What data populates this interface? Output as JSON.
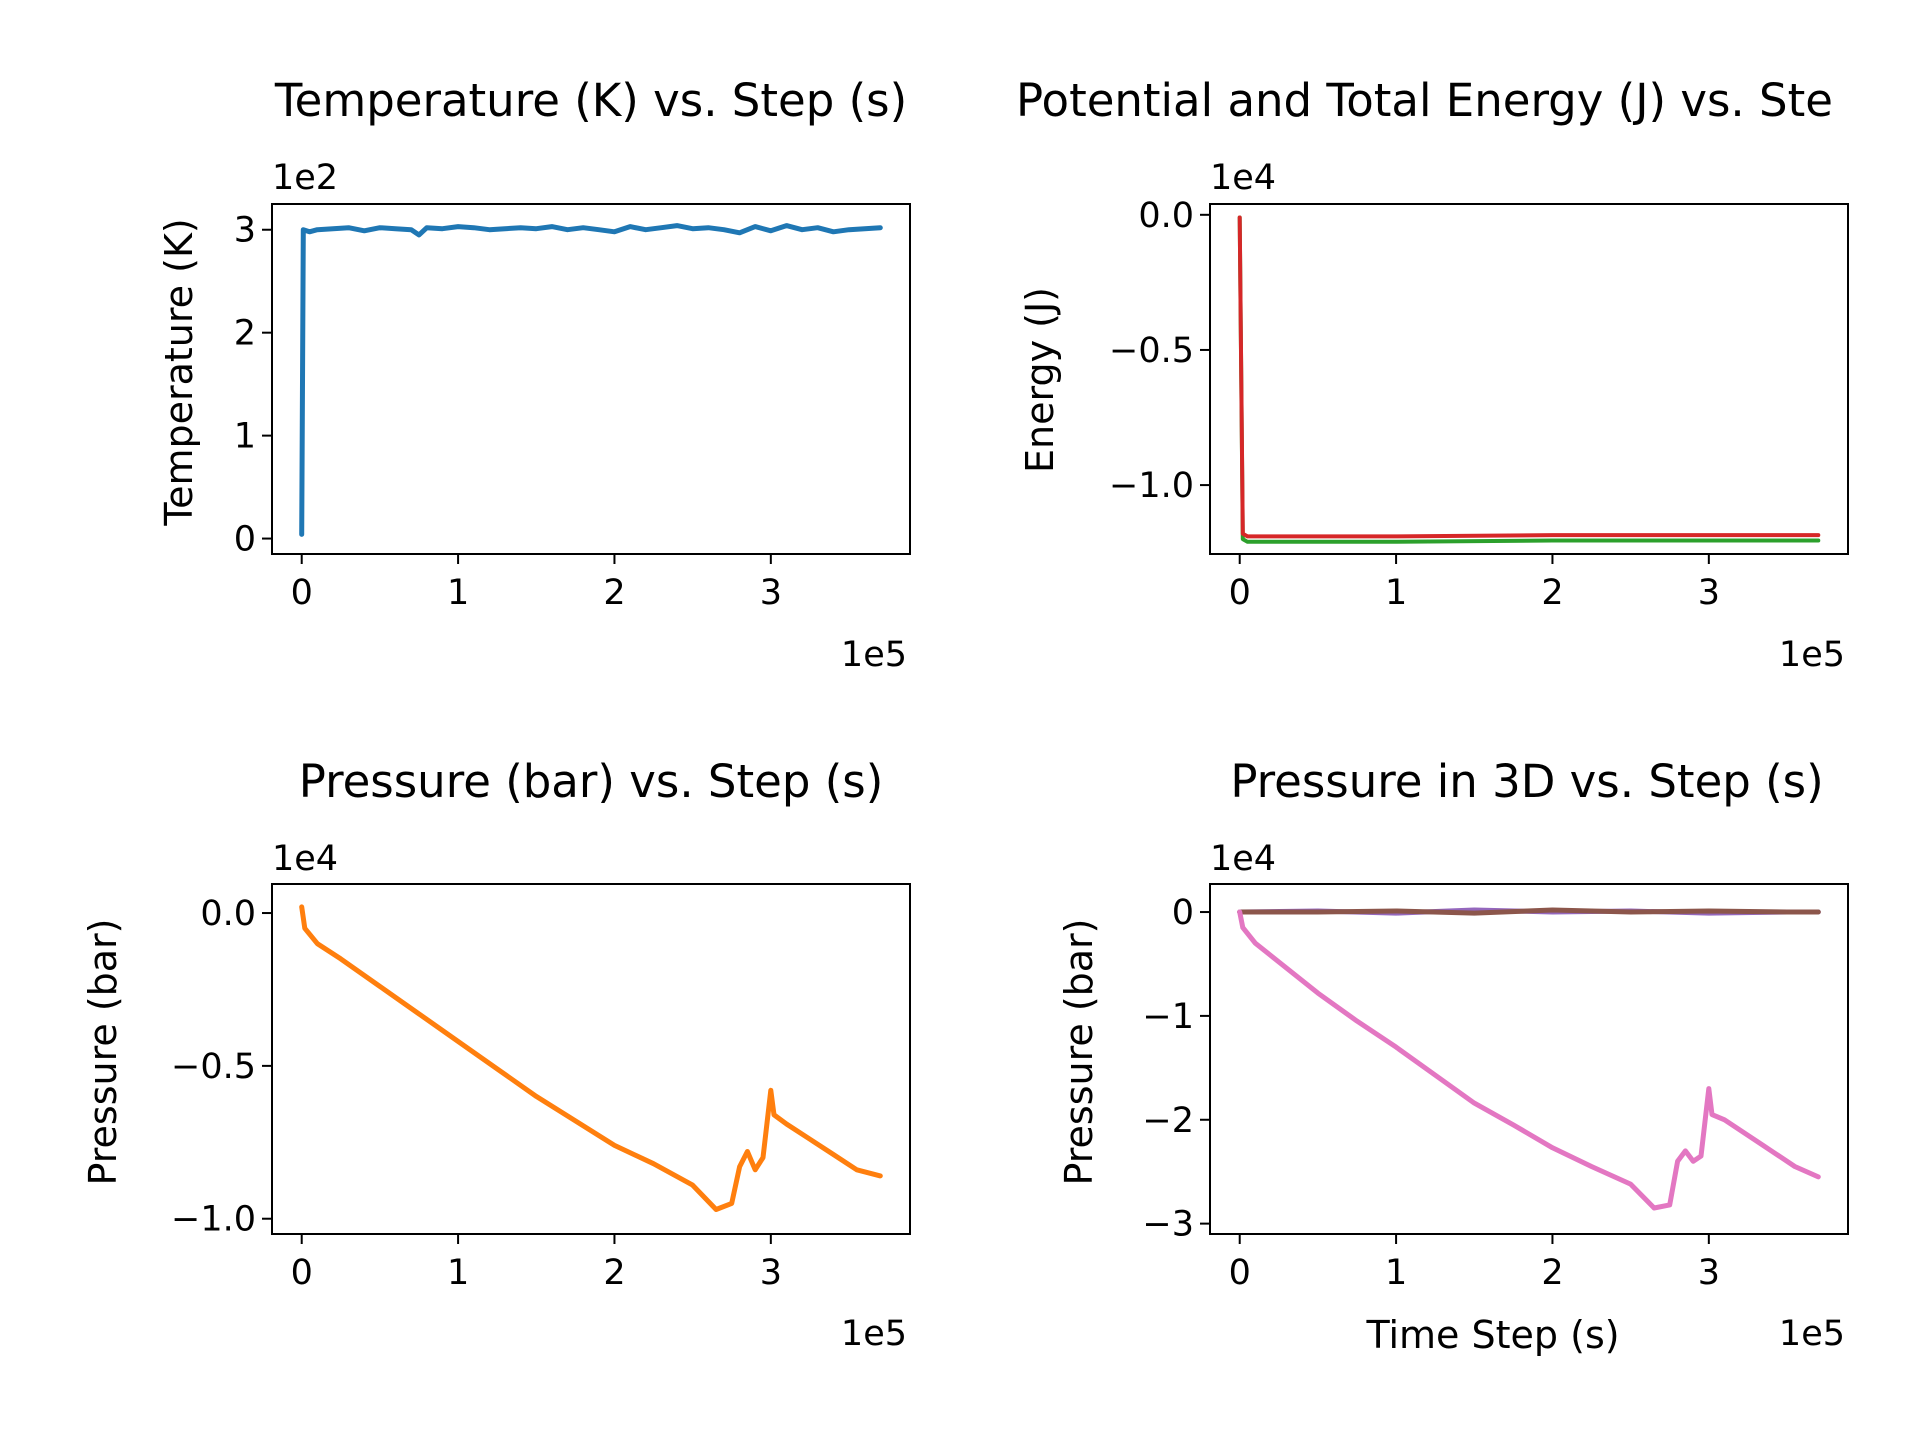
{
  "chart_data": [
    {
      "id": "temperature",
      "type": "line",
      "title": "Temperature (K) vs. Step (s)",
      "xlabel": "",
      "ylabel": "Temperature (K)",
      "x_multiplier_label": "1e5",
      "y_multiplier_label": "1e2",
      "xlim": [
        -0.19,
        3.89
      ],
      "ylim": [
        -0.15,
        3.25
      ],
      "x_ticks": [
        0,
        1,
        2,
        3
      ],
      "x_tick_labels": [
        "0",
        "1",
        "2",
        "3"
      ],
      "y_ticks": [
        0,
        1,
        2,
        3
      ],
      "y_tick_labels": [
        "0",
        "1",
        "2",
        "3"
      ],
      "series": [
        {
          "color": "#1f77b4",
          "x": [
            0.0,
            0.01,
            0.05,
            0.1,
            0.2,
            0.3,
            0.4,
            0.5,
            0.6,
            0.7,
            0.75,
            0.8,
            0.9,
            1.0,
            1.1,
            1.2,
            1.3,
            1.4,
            1.5,
            1.6,
            1.7,
            1.8,
            1.9,
            2.0,
            2.1,
            2.2,
            2.3,
            2.4,
            2.5,
            2.6,
            2.7,
            2.8,
            2.9,
            3.0,
            3.1,
            3.2,
            3.3,
            3.4,
            3.5,
            3.6,
            3.7
          ],
          "y": [
            0.04,
            3.0,
            2.98,
            3.0,
            3.01,
            3.02,
            2.99,
            3.02,
            3.01,
            3.0,
            2.95,
            3.02,
            3.01,
            3.03,
            3.02,
            3.0,
            3.01,
            3.02,
            3.01,
            3.03,
            3.0,
            3.02,
            3.0,
            2.98,
            3.03,
            3.0,
            3.02,
            3.04,
            3.01,
            3.02,
            3.0,
            2.97,
            3.03,
            2.99,
            3.04,
            3.0,
            3.02,
            2.98,
            3.0,
            3.01,
            3.02
          ]
        }
      ]
    },
    {
      "id": "energy",
      "type": "line",
      "title": "Potential and Total Energy (J) vs. Ste",
      "xlabel": "",
      "ylabel": "Energy (J)",
      "x_multiplier_label": "1e5",
      "y_multiplier_label": "1e4",
      "xlim": [
        -0.19,
        3.89
      ],
      "ylim": [
        -1.255,
        0.04
      ],
      "x_ticks": [
        0,
        1,
        2,
        3
      ],
      "x_tick_labels": [
        "0",
        "1",
        "2",
        "3"
      ],
      "y_ticks": [
        0.0,
        -0.5,
        -1.0
      ],
      "y_tick_labels": [
        "0.0",
        "−0.5",
        "−1.0"
      ],
      "series": [
        {
          "color": "#2ca02c",
          "x": [
            0.0,
            0.02,
            0.05,
            1.0,
            2.0,
            3.0,
            3.7
          ],
          "y": [
            -0.01,
            -1.2,
            -1.21,
            -1.21,
            -1.205,
            -1.205,
            -1.205
          ]
        },
        {
          "color": "#d62728",
          "x": [
            0.0,
            0.02,
            0.05,
            1.0,
            2.0,
            3.0,
            3.7
          ],
          "y": [
            -0.01,
            -1.18,
            -1.19,
            -1.19,
            -1.185,
            -1.185,
            -1.185
          ]
        }
      ]
    },
    {
      "id": "pressure",
      "type": "line",
      "title": "Pressure (bar) vs. Step (s)",
      "xlabel": "",
      "ylabel": "Pressure (bar)",
      "x_multiplier_label": "1e5",
      "y_multiplier_label": "1e4",
      "xlim": [
        -0.19,
        3.89
      ],
      "ylim": [
        -1.05,
        0.095
      ],
      "x_ticks": [
        0,
        1,
        2,
        3
      ],
      "x_tick_labels": [
        "0",
        "1",
        "2",
        "3"
      ],
      "y_ticks": [
        0.0,
        -0.5,
        -1.0
      ],
      "y_tick_labels": [
        "0.0",
        "−0.5",
        "−1.0"
      ],
      "series": [
        {
          "color": "#ff7f0e",
          "x": [
            0.0,
            0.02,
            0.1,
            0.25,
            0.5,
            0.75,
            1.0,
            1.25,
            1.5,
            1.75,
            2.0,
            2.25,
            2.5,
            2.65,
            2.75,
            2.8,
            2.85,
            2.9,
            2.95,
            3.0,
            3.02,
            3.1,
            3.25,
            3.4,
            3.55,
            3.7
          ],
          "y": [
            0.02,
            -0.05,
            -0.1,
            -0.15,
            -0.24,
            -0.33,
            -0.42,
            -0.51,
            -0.6,
            -0.68,
            -0.76,
            -0.82,
            -0.89,
            -0.97,
            -0.95,
            -0.83,
            -0.78,
            -0.84,
            -0.8,
            -0.58,
            -0.66,
            -0.69,
            -0.74,
            -0.79,
            -0.84,
            -0.86
          ]
        }
      ]
    },
    {
      "id": "pressure3d",
      "type": "line",
      "title": "Pressure in 3D vs. Step (s)",
      "xlabel": "Time Step (s)",
      "ylabel": "Pressure (bar)",
      "x_multiplier_label": "1e5",
      "y_multiplier_label": "1e4",
      "xlim": [
        -0.19,
        3.89
      ],
      "ylim": [
        -3.1,
        0.27
      ],
      "x_ticks": [
        0,
        1,
        2,
        3
      ],
      "x_tick_labels": [
        "0",
        "1",
        "2",
        "3"
      ],
      "y_ticks": [
        0,
        -1,
        -2,
        -3
      ],
      "y_tick_labels": [
        "0",
        "−1",
        "−2",
        "−3"
      ],
      "series": [
        {
          "color": "#9467bd",
          "x": [
            0.0,
            0.5,
            1.0,
            1.5,
            2.0,
            2.5,
            3.0,
            3.5,
            3.7
          ],
          "y": [
            0.0,
            0.01,
            -0.01,
            0.02,
            0.0,
            0.01,
            -0.01,
            0.0,
            0.0
          ]
        },
        {
          "color": "#8c564b",
          "x": [
            0.0,
            0.5,
            1.0,
            1.5,
            2.0,
            2.5,
            3.0,
            3.5,
            3.7
          ],
          "y": [
            0.0,
            0.0,
            0.01,
            -0.01,
            0.02,
            0.0,
            0.01,
            0.0,
            0.0
          ]
        },
        {
          "color": "#e377c2",
          "x": [
            0.0,
            0.02,
            0.1,
            0.25,
            0.5,
            0.75,
            1.0,
            1.25,
            1.5,
            1.75,
            2.0,
            2.25,
            2.5,
            2.65,
            2.75,
            2.8,
            2.85,
            2.9,
            2.95,
            3.0,
            3.02,
            3.1,
            3.25,
            3.4,
            3.55,
            3.7
          ],
          "y": [
            0.0,
            -0.15,
            -0.3,
            -0.48,
            -0.78,
            -1.05,
            -1.3,
            -1.57,
            -1.84,
            -2.05,
            -2.27,
            -2.45,
            -2.62,
            -2.85,
            -2.82,
            -2.4,
            -2.3,
            -2.4,
            -2.35,
            -1.7,
            -1.95,
            -2.0,
            -2.15,
            -2.3,
            -2.45,
            -2.55
          ]
        }
      ]
    }
  ]
}
